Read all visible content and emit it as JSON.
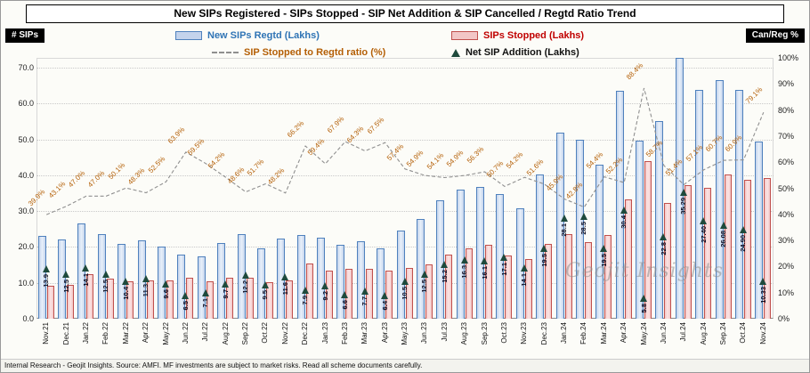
{
  "title": "New SIPs Registered - SIPs Stopped - SIP Net Addition & SIP Cancelled / Regtd Ratio Trend",
  "axes": {
    "left_label": "# SIPs",
    "right_label": "Can/Reg %",
    "left_ticks": [
      "70.0",
      "60.0",
      "50.0",
      "40.0",
      "30.0",
      "20.0",
      "10.0",
      "0.0"
    ],
    "right_ticks": [
      "100%",
      "90%",
      "80%",
      "70%",
      "60%",
      "50%",
      "40%",
      "30%",
      "20%",
      "10%",
      "0%"
    ]
  },
  "legend": {
    "new_sips": "New SIPs Regtd (Lakhs)",
    "stopped": "SIPs Stopped (Lakhs)",
    "ratio": "SIP Stopped to Regtd ratio (%)",
    "net": "Net SIP Addition (Lakhs)"
  },
  "watermark": "Geojit Insights",
  "footer": "Internal Research - Geojit Insights. Source: AMFI. MF investments are subject to market risks. Read all scheme documents carefully.",
  "colors": {
    "new_bar_fill": "#c3d3ec",
    "new_bar_fill_light": "#e9f0fa",
    "new_bar_border": "#4f81bd",
    "stopped_bar_fill": "#f2c6c6",
    "stopped_bar_fill_light": "#fbe4e4",
    "stopped_bar_border": "#c0504d",
    "ratio_line": "#8f8f8f",
    "ratio_label": "#b45f06",
    "net_marker": "#1e4a3c",
    "legend_new_text": "#2f74b5",
    "legend_stopped_text": "#c00000"
  },
  "chart_data": {
    "type": "bar",
    "title": "New SIPs Registered - SIPs Stopped - SIP Net Addition & SIP Cancelled / Regtd Ratio Trend",
    "xlabel": "Month",
    "ylabel_left": "# SIPs (Lakhs)",
    "ylabel_right": "Can/Reg %",
    "ylim_left": [
      0,
      70
    ],
    "ylim_right": [
      0,
      100
    ],
    "grid": true,
    "legend_position": "top",
    "categories": [
      "Nov.21",
      "Dec.21",
      "Jan.22",
      "Feb.22",
      "Mar.22",
      "Apr.22",
      "May.22",
      "Jun.22",
      "Jul.22",
      "Aug.22",
      "Sep.22",
      "Oct.22",
      "Nov.22",
      "Dec.22",
      "Jan.23",
      "Feb.23",
      "Mar.23",
      "Apr.23",
      "May.23",
      "Jun.23",
      "Jul.23",
      "Aug.23",
      "Sep.23",
      "Oct.23",
      "Nov.23",
      "Dec.23",
      "Jan.24",
      "Feb.24",
      "Mar.24",
      "Apr.24",
      "May.24",
      "Jun.24",
      "Jul.24",
      "Aug.24",
      "Sep.24",
      "Oct.24",
      "Nov.24"
    ],
    "series": [
      {
        "name": "New SIPs Regtd (Lakhs)",
        "type": "bar",
        "axis": "left",
        "values": [
          23.2,
          22.0,
          26.6,
          23.6,
          20.8,
          21.9,
          20.2,
          18.0,
          17.5,
          21.2,
          23.7,
          19.7,
          22.4,
          23.4,
          22.7,
          20.6,
          21.6,
          19.7,
          24.6,
          27.7,
          33.1,
          35.9,
          36.8,
          34.7,
          30.8,
          40.3,
          51.8,
          49.8,
          42.9,
          63.6,
          49.7,
          55.1,
          72.6,
          63.9,
          66.4,
          63.7,
          49.5
        ]
      },
      {
        "name": "SIPs Stopped (Lakhs)",
        "type": "bar",
        "axis": "left",
        "values": [
          9.3,
          9.5,
          12.5,
          11.1,
          10.4,
          10.6,
          10.6,
          11.5,
          10.4,
          11.5,
          11.5,
          10.2,
          10.8,
          15.5,
          13.5,
          14.0,
          13.9,
          13.3,
          14.1,
          15.2,
          17.9,
          19.6,
          20.7,
          17.6,
          16.7,
          20.8,
          23.7,
          21.3,
          23.4,
          33.2,
          43.9,
          32.3,
          37.3,
          36.5,
          40.3,
          38.8,
          39.1
        ]
      },
      {
        "name": "Net SIP Addition (Lakhs)",
        "type": "scatter",
        "marker": "triangle",
        "axis": "left",
        "values": [
          13.9,
          12.5,
          14.1,
          12.5,
          10.4,
          11.3,
          9.6,
          6.5,
          7.1,
          9.7,
          12.2,
          9.5,
          11.6,
          7.9,
          9.2,
          6.6,
          7.7,
          6.4,
          10.5,
          12.5,
          15.2,
          16.3,
          16.1,
          17.1,
          14.1,
          19.5,
          28.1,
          28.5,
          19.5,
          30.4,
          5.8,
          22.8,
          35.29,
          27.4,
          26.08,
          24.9,
          10.33
        ],
        "labels": [
          "13.9",
          "12.5",
          "14.1",
          "12.5",
          "10.4",
          "11.3",
          "9.6",
          "6.5",
          "7.1",
          "9.7",
          "12.2",
          "9.5",
          "11.6",
          "7.9",
          "9.2",
          "6.6",
          "7.7",
          "6.4",
          "10.5",
          "12.5",
          "15.2",
          "16.3",
          "16.1",
          "17.1",
          "14.1",
          "19.5",
          "28.1",
          "28.5",
          "19.5",
          "30.4",
          "5.8",
          "22.8",
          "35.29",
          "27.40",
          "26.08",
          "24.90",
          "10.33"
        ]
      },
      {
        "name": "SIP Stopped to Regtd ratio (%)",
        "type": "line",
        "style": "dashed",
        "axis": "right",
        "values": [
          39.9,
          43.1,
          47.0,
          47.0,
          50.1,
          48.3,
          52.5,
          63.9,
          59.5,
          54.2,
          48.6,
          51.7,
          48.2,
          66.2,
          59.4,
          67.9,
          64.3,
          67.5,
          57.4,
          54.9,
          54.1,
          54.9,
          56.3,
          50.7,
          54.2,
          51.6,
          45.9,
          42.8,
          54.4,
          52.2,
          88.4,
          58.7,
          51.4,
          57.1,
          60.7,
          60.9,
          79.1
        ],
        "labels": [
          "39.9%",
          "43.1%",
          "47.0%",
          "47.0%",
          "50.1%",
          "48.3%",
          "52.5%",
          "63.9%",
          "59.5%",
          "54.2%",
          "48.6%",
          "51.7%",
          "48.2%",
          "66.2%",
          "59.4%",
          "67.9%",
          "64.3%",
          "67.5%",
          "57.4%",
          "54.9%",
          "54.1%",
          "54.9%",
          "56.3%",
          "50.7%",
          "54.2%",
          "51.6%",
          "45.9%",
          "42.8%",
          "54.4%",
          "52.2%",
          "88.4%",
          "58.7%",
          "51.4%",
          "57.1%",
          "60.7%",
          "60.9%",
          "79.1%"
        ]
      }
    ]
  }
}
